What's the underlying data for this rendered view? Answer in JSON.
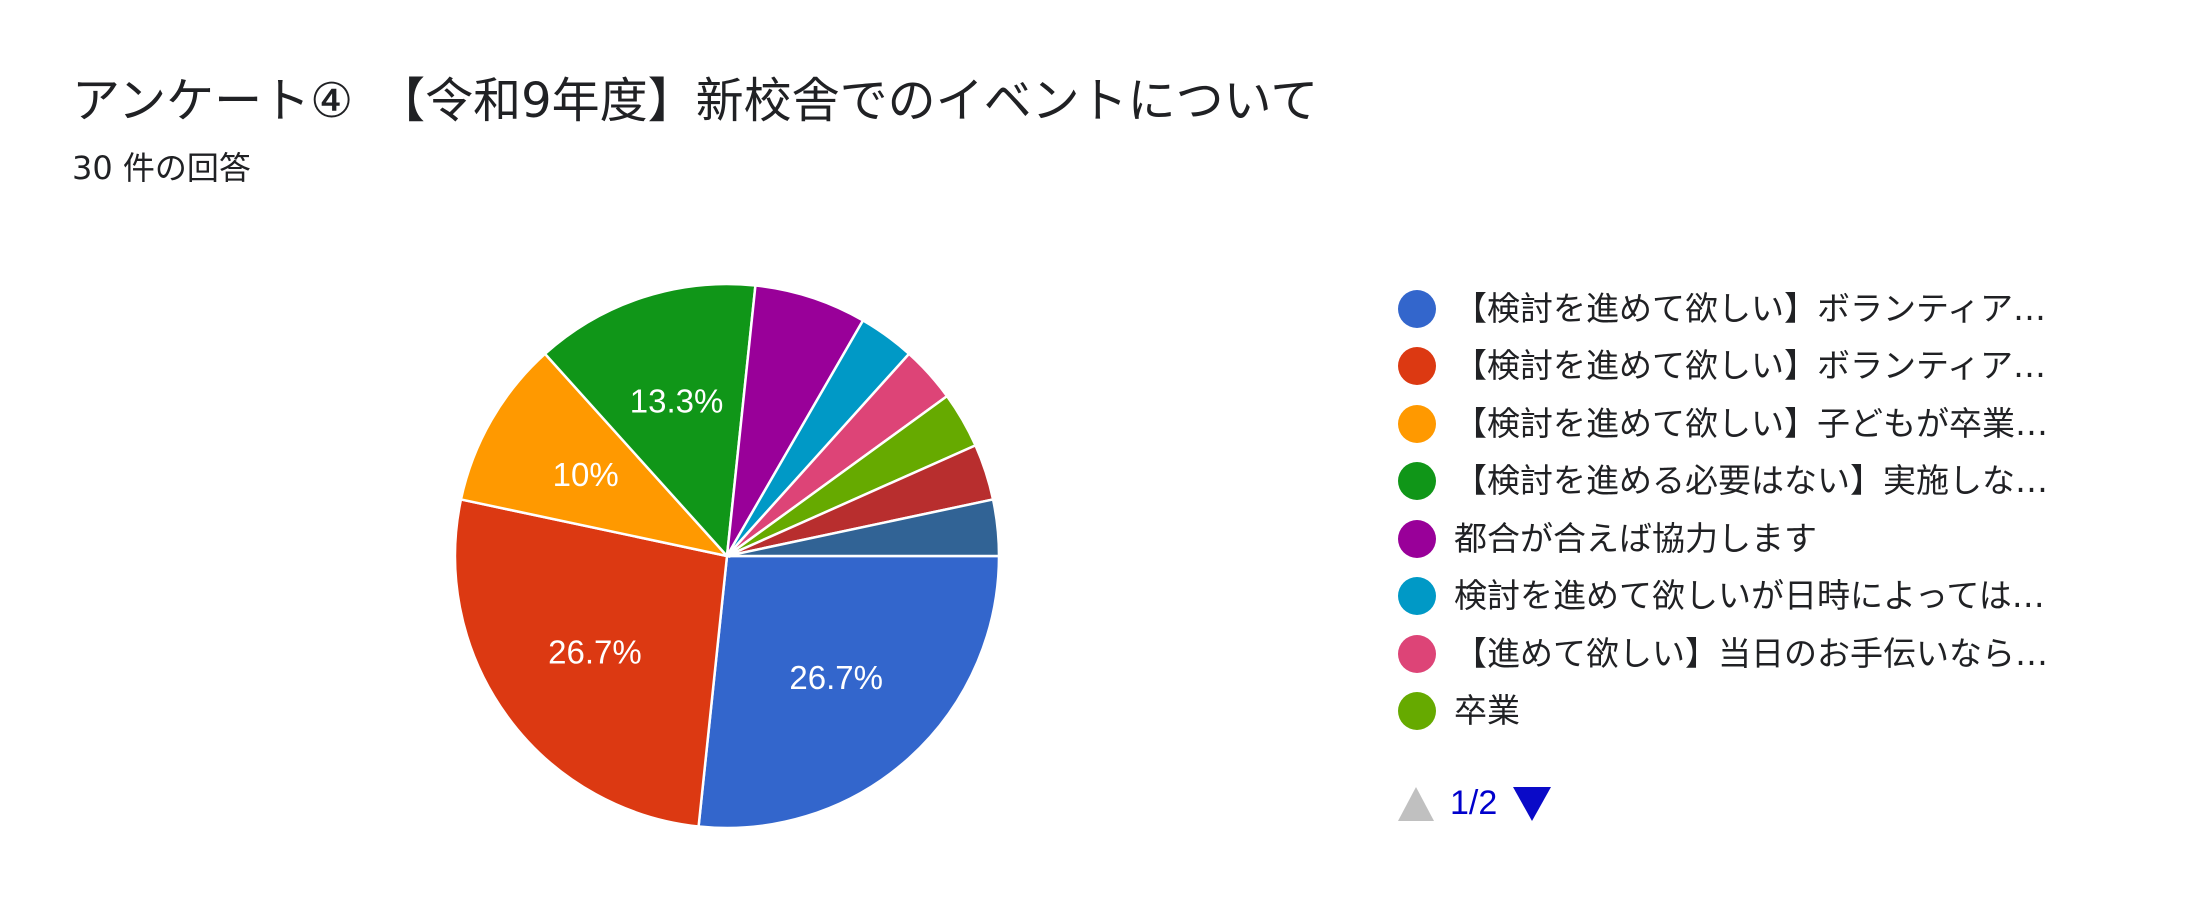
{
  "title": "アンケート④　【令和9年度】新校舎でのイベントについて",
  "subtitle": "30 件の回答",
  "pager": {
    "text": "1/2"
  },
  "legend": [
    {
      "label": "【検討を進めて欲しい】ボランティア…",
      "color": "#3366cc"
    },
    {
      "label": "【検討を進めて欲しい】ボランティア…",
      "color": "#dc3912"
    },
    {
      "label": "【検討を進めて欲しい】子どもが卒業…",
      "color": "#ff9900"
    },
    {
      "label": "【検討を進める必要はない】実施しな…",
      "color": "#109618"
    },
    {
      "label": "都合が合えば協力します",
      "color": "#990099"
    },
    {
      "label": "検討を進めて欲しいが日時によっては…",
      "color": "#0099c6"
    },
    {
      "label": "【進めて欲しい】当日のお手伝いなら…",
      "color": "#dd4477"
    },
    {
      "label": "卒業",
      "color": "#66aa00"
    }
  ],
  "chart_data": {
    "type": "pie",
    "total_responses": 30,
    "slices": [
      {
        "count": 8,
        "percent": 26.7,
        "label": "26.7%",
        "color": "#3366cc"
      },
      {
        "count": 8,
        "percent": 26.7,
        "label": "26.7%",
        "color": "#dc3912"
      },
      {
        "count": 3,
        "percent": 10,
        "label": "10%",
        "color": "#ff9900"
      },
      {
        "count": 4,
        "percent": 13.3,
        "label": "13.3%",
        "color": "#109618"
      },
      {
        "count": 2,
        "percent": 6.7,
        "label": "",
        "color": "#990099"
      },
      {
        "count": 1,
        "percent": 3.3,
        "label": "",
        "color": "#0099c6"
      },
      {
        "count": 1,
        "percent": 3.3,
        "label": "",
        "color": "#dd4477"
      },
      {
        "count": 1,
        "percent": 3.3,
        "label": "",
        "color": "#66aa00"
      },
      {
        "count": 1,
        "percent": 3.3,
        "label": "",
        "color": "#b82e2e"
      },
      {
        "count": 1,
        "percent": 3.3,
        "label": "",
        "color": "#316395"
      }
    ]
  }
}
